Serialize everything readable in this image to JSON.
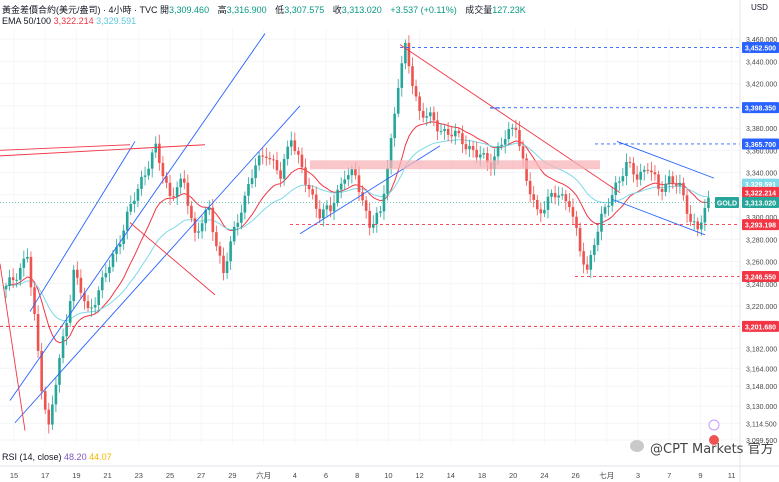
{
  "header": {
    "title": "黃金差價合約(美元/盎司) · 4小時 · TVC",
    "open_label": "開",
    "open": "3,309.460",
    "high_label": "高",
    "high": "3,316.900",
    "low_label": "低",
    "low": "3,307.575",
    "close_label": "收",
    "close": "3,313.020",
    "change": "+3.537 (+0.11%)",
    "volume_label": "成交量",
    "volume": "127.23K",
    "ema_label": "EMA 50/100",
    "ema50": "3,322.214",
    "ema100": "3,329.591",
    "currency": "USD"
  },
  "rsi": {
    "label": "RSI (14, close)",
    "v1": "48.20",
    "v2": "44.07"
  },
  "watermark": "@CPT Markets 官方",
  "colors": {
    "up": "#26a69a",
    "down": "#ef5350",
    "ema50": "#f23645",
    "ema100": "#7fd9e8",
    "trend_blue": "#2962ff",
    "trend_red": "#f23645",
    "zone": "#f7b3b8"
  },
  "chart_data": {
    "type": "candlestick",
    "x_ticks": [
      "15",
      "17",
      "19",
      "21",
      "23",
      "25",
      "27",
      "29",
      "六月",
      "4",
      "6",
      "8",
      "10",
      "12",
      "14",
      "18",
      "20",
      "24",
      "26",
      "七月",
      "3",
      "7",
      "9",
      "11"
    ],
    "y_ticks": [
      "3,460.000",
      "3,440.000",
      "3,420.000",
      "3,400.000",
      "3,380.000",
      "3,360.000",
      "3,340.000",
      "3,320.000",
      "3,300.000",
      "3,280.000",
      "3,260.000",
      "3,240.000",
      "3,220.000",
      "3,200.000",
      "3,182.000",
      "3,164.000",
      "3,148.000",
      "3,130.000",
      "3,114.500",
      "3,099.500"
    ],
    "ylim": [
      3095,
      3470
    ],
    "price_labels": [
      {
        "value": 3452.5,
        "text": "3,452.500",
        "color": "#2962ff"
      },
      {
        "value": 3398.35,
        "text": "3,398.350",
        "color": "#2962ff"
      },
      {
        "value": 3365.7,
        "text": "3,365.700",
        "color": "#2962ff"
      },
      {
        "value": 3329.591,
        "text": "3,329.591",
        "color": "#7fd9e8"
      },
      {
        "value": 3322.214,
        "text": "3,322.214",
        "color": "#f23645"
      },
      {
        "value": 3313.02,
        "text": "3,313.020",
        "color": "#26a69a"
      },
      {
        "value": 3293.198,
        "text": "3,293.198",
        "color": "#f23645"
      },
      {
        "value": 3246.55,
        "text": "3,246.550",
        "color": "#f23645"
      },
      {
        "value": 3201.68,
        "text": "3,201.680",
        "color": "#f23645"
      }
    ],
    "symbol_tag": "GOLD",
    "anchors": [
      {
        "x": 0,
        "price": 3235
      },
      {
        "x": 6,
        "price": 3265
      },
      {
        "x": 10,
        "price": 3150
      },
      {
        "x": 12,
        "price": 3110
      },
      {
        "x": 16,
        "price": 3190
      },
      {
        "x": 19,
        "price": 3250
      },
      {
        "x": 23,
        "price": 3215
      },
      {
        "x": 27,
        "price": 3240
      },
      {
        "x": 33,
        "price": 3290
      },
      {
        "x": 38,
        "price": 3335
      },
      {
        "x": 42,
        "price": 3360
      },
      {
        "x": 46,
        "price": 3320
      },
      {
        "x": 50,
        "price": 3330
      },
      {
        "x": 53,
        "price": 3285
      },
      {
        "x": 57,
        "price": 3305
      },
      {
        "x": 61,
        "price": 3250
      },
      {
        "x": 66,
        "price": 3310
      },
      {
        "x": 70,
        "price": 3345
      },
      {
        "x": 73,
        "price": 3360
      },
      {
        "x": 77,
        "price": 3335
      },
      {
        "x": 80,
        "price": 3375
      },
      {
        "x": 84,
        "price": 3330
      },
      {
        "x": 88,
        "price": 3305
      },
      {
        "x": 91,
        "price": 3305
      },
      {
        "x": 95,
        "price": 3340
      },
      {
        "x": 98,
        "price": 3335
      },
      {
        "x": 102,
        "price": 3295
      },
      {
        "x": 105,
        "price": 3300
      },
      {
        "x": 108,
        "price": 3370
      },
      {
        "x": 110,
        "price": 3420
      },
      {
        "x": 112,
        "price": 3450
      },
      {
        "x": 116,
        "price": 3395
      },
      {
        "x": 120,
        "price": 3385
      },
      {
        "x": 124,
        "price": 3375
      },
      {
        "x": 128,
        "price": 3370
      },
      {
        "x": 132,
        "price": 3355
      },
      {
        "x": 136,
        "price": 3350
      },
      {
        "x": 140,
        "price": 3370
      },
      {
        "x": 143,
        "price": 3385
      },
      {
        "x": 146,
        "price": 3330
      },
      {
        "x": 149,
        "price": 3305
      },
      {
        "x": 152,
        "price": 3315
      },
      {
        "x": 155,
        "price": 3320
      },
      {
        "x": 158,
        "price": 3315
      },
      {
        "x": 161,
        "price": 3268
      },
      {
        "x": 163,
        "price": 3252
      },
      {
        "x": 165,
        "price": 3280
      },
      {
        "x": 168,
        "price": 3305
      },
      {
        "x": 171,
        "price": 3330
      },
      {
        "x": 174,
        "price": 3345
      },
      {
        "x": 177,
        "price": 3338
      },
      {
        "x": 180,
        "price": 3345
      },
      {
        "x": 183,
        "price": 3325
      },
      {
        "x": 186,
        "price": 3335
      },
      {
        "x": 189,
        "price": 3325
      },
      {
        "x": 192,
        "price": 3300
      },
      {
        "x": 194,
        "price": 3288
      },
      {
        "x": 197,
        "price": 3313
      }
    ]
  }
}
